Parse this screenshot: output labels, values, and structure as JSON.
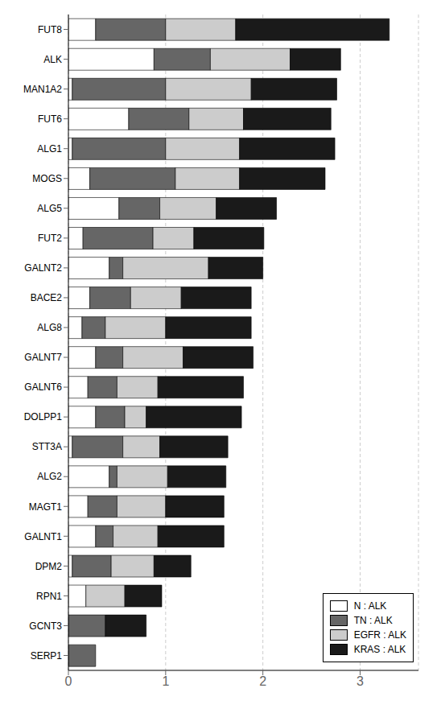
{
  "chart_data": {
    "type": "bar",
    "orientation": "horizontal",
    "stacked": true,
    "categories": [
      "FUT8",
      "ALK",
      "MAN1A2",
      "FUT6",
      "ALG1",
      "MOGS",
      "ALG5",
      "FUT2",
      "GALNT2",
      "BACE2",
      "ALG8",
      "GALNT7",
      "GALNT6",
      "DOLPP1",
      "STT3A",
      "ALG2",
      "MAGT1",
      "GALNT1",
      "DPM2",
      "RPN1",
      "GCNT3",
      "SERP1"
    ],
    "series": [
      {
        "name": "N : ALK",
        "color": "#ffffff",
        "values": [
          0.28,
          0.88,
          0.04,
          0.62,
          0.04,
          0.22,
          0.52,
          0.15,
          0.42,
          0.22,
          0.14,
          0.28,
          0.2,
          0.28,
          0.04,
          0.42,
          0.2,
          0.28,
          0.04,
          0.18,
          0.0,
          0.0
        ]
      },
      {
        "name": "TN : ALK",
        "color": "#666666",
        "values": [
          0.72,
          0.58,
          0.96,
          0.62,
          0.96,
          0.88,
          0.42,
          0.72,
          0.14,
          0.42,
          0.24,
          0.28,
          0.3,
          0.3,
          0.52,
          0.08,
          0.3,
          0.18,
          0.4,
          0.0,
          0.38,
          0.28
        ]
      },
      {
        "name": "EGFR : ALK",
        "color": "#cccccc",
        "values": [
          0.72,
          0.82,
          0.88,
          0.56,
          0.76,
          0.66,
          0.58,
          0.42,
          0.88,
          0.52,
          0.62,
          0.62,
          0.42,
          0.22,
          0.38,
          0.52,
          0.5,
          0.46,
          0.44,
          0.4,
          0.0,
          0.0
        ]
      },
      {
        "name": "KRAS : ALK",
        "color": "#1a1a1a",
        "values": [
          1.58,
          0.52,
          0.88,
          0.9,
          0.98,
          0.88,
          0.62,
          0.72,
          0.56,
          0.72,
          0.88,
          0.72,
          0.88,
          0.98,
          0.7,
          0.6,
          0.6,
          0.68,
          0.38,
          0.38,
          0.42,
          0.0
        ]
      }
    ],
    "xlim": [
      0,
      3.6
    ],
    "xticks": [
      0,
      1,
      2,
      3
    ],
    "grid": true,
    "legend": "lower right"
  }
}
